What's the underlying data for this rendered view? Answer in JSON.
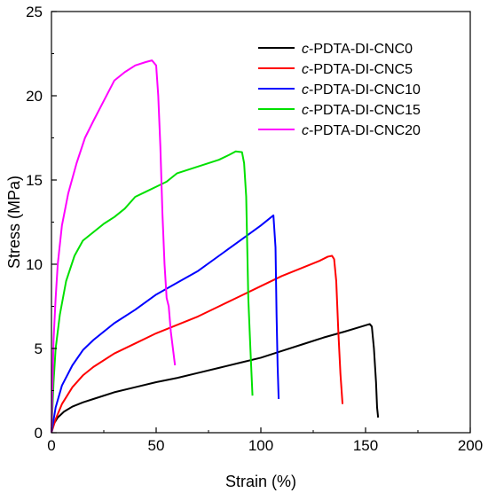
{
  "chart_data": {
    "type": "line",
    "title": "",
    "xlabel": "Strain (%)",
    "ylabel": "Stress (MPa)",
    "xlim": [
      0,
      200
    ],
    "ylim": [
      0,
      25
    ],
    "xticks": [
      0,
      50,
      100,
      150,
      200
    ],
    "yticks": [
      0,
      5,
      10,
      15,
      20,
      25
    ],
    "grid": false,
    "legend_position": "top-right",
    "series": [
      {
        "name_prefix": "c",
        "name_rest": "-PDTA-DI-CNC0",
        "color": "#000000",
        "points": [
          [
            0,
            0
          ],
          [
            1,
            0.5
          ],
          [
            3,
            0.9
          ],
          [
            6,
            1.25
          ],
          [
            10,
            1.55
          ],
          [
            15,
            1.8
          ],
          [
            20,
            2.0
          ],
          [
            30,
            2.4
          ],
          [
            40,
            2.7
          ],
          [
            50,
            3.0
          ],
          [
            60,
            3.25
          ],
          [
            70,
            3.55
          ],
          [
            80,
            3.85
          ],
          [
            90,
            4.15
          ],
          [
            100,
            4.45
          ],
          [
            110,
            4.85
          ],
          [
            120,
            5.25
          ],
          [
            130,
            5.65
          ],
          [
            140,
            6.0
          ],
          [
            148,
            6.3
          ],
          [
            152,
            6.45
          ],
          [
            153,
            6.3
          ],
          [
            154,
            5.0
          ],
          [
            155,
            3.0
          ],
          [
            155.5,
            1.5
          ],
          [
            156,
            0.9
          ]
        ]
      },
      {
        "name_prefix": "c",
        "name_rest": "-PDTA-DI-CNC5",
        "color": "#ff0000",
        "points": [
          [
            0,
            0
          ],
          [
            2,
            0.8
          ],
          [
            5,
            1.7
          ],
          [
            10,
            2.7
          ],
          [
            15,
            3.4
          ],
          [
            20,
            3.9
          ],
          [
            30,
            4.7
          ],
          [
            40,
            5.3
          ],
          [
            50,
            5.9
          ],
          [
            60,
            6.4
          ],
          [
            70,
            6.9
          ],
          [
            80,
            7.5
          ],
          [
            90,
            8.1
          ],
          [
            100,
            8.7
          ],
          [
            110,
            9.3
          ],
          [
            120,
            9.8
          ],
          [
            128,
            10.2
          ],
          [
            132,
            10.45
          ],
          [
            134,
            10.5
          ],
          [
            135,
            10.3
          ],
          [
            136,
            9.0
          ],
          [
            137,
            6.0
          ],
          [
            138,
            3.5
          ],
          [
            139,
            1.7
          ]
        ]
      },
      {
        "name_prefix": "c",
        "name_rest": "-PDTA-DI-CNC10",
        "color": "#0000ff",
        "points": [
          [
            0,
            0
          ],
          [
            2,
            1.5
          ],
          [
            5,
            2.8
          ],
          [
            10,
            4.0
          ],
          [
            15,
            4.9
          ],
          [
            20,
            5.5
          ],
          [
            30,
            6.5
          ],
          [
            40,
            7.3
          ],
          [
            50,
            8.2
          ],
          [
            60,
            8.9
          ],
          [
            70,
            9.6
          ],
          [
            80,
            10.5
          ],
          [
            90,
            11.4
          ],
          [
            100,
            12.3
          ],
          [
            104,
            12.7
          ],
          [
            106,
            12.9
          ],
          [
            107,
            11.0
          ],
          [
            107.5,
            7.0
          ],
          [
            108,
            4.0
          ],
          [
            108.5,
            2.0
          ]
        ]
      },
      {
        "name_prefix": "c",
        "name_rest": "-PDTA-DI-CNC15",
        "color": "#00e000",
        "points": [
          [
            0,
            0
          ],
          [
            1,
            3.0
          ],
          [
            2,
            5.0
          ],
          [
            4,
            7.0
          ],
          [
            7,
            9.0
          ],
          [
            11,
            10.5
          ],
          [
            15,
            11.4
          ],
          [
            20,
            11.9
          ],
          [
            25,
            12.4
          ],
          [
            30,
            12.8
          ],
          [
            35,
            13.3
          ],
          [
            40,
            14.0
          ],
          [
            45,
            14.3
          ],
          [
            50,
            14.6
          ],
          [
            55,
            14.9
          ],
          [
            60,
            15.4
          ],
          [
            70,
            15.8
          ],
          [
            80,
            16.2
          ],
          [
            85,
            16.5
          ],
          [
            88,
            16.7
          ],
          [
            91,
            16.65
          ],
          [
            92,
            16.0
          ],
          [
            93,
            14.0
          ],
          [
            93.5,
            11.0
          ],
          [
            94,
            8.0
          ],
          [
            95,
            5.0
          ],
          [
            96,
            2.2
          ]
        ]
      },
      {
        "name_prefix": "c",
        "name_rest": "-PDTA-DI-CNC20",
        "color": "#ff00ff",
        "points": [
          [
            0,
            0
          ],
          [
            0.5,
            3.0
          ],
          [
            1,
            5.5
          ],
          [
            2,
            8.0
          ],
          [
            3,
            10.0
          ],
          [
            5,
            12.3
          ],
          [
            8,
            14.2
          ],
          [
            12,
            16.0
          ],
          [
            16,
            17.5
          ],
          [
            20,
            18.5
          ],
          [
            25,
            19.7
          ],
          [
            30,
            20.9
          ],
          [
            35,
            21.4
          ],
          [
            40,
            21.8
          ],
          [
            45,
            22.0
          ],
          [
            48,
            22.1
          ],
          [
            50,
            21.8
          ],
          [
            51,
            20.0
          ],
          [
            52,
            17.0
          ],
          [
            53,
            13.0
          ],
          [
            54,
            10.0
          ],
          [
            55,
            8.0
          ],
          [
            56,
            7.5
          ],
          [
            57,
            6.0
          ],
          [
            58,
            5.0
          ],
          [
            59,
            4.0
          ]
        ]
      }
    ]
  }
}
